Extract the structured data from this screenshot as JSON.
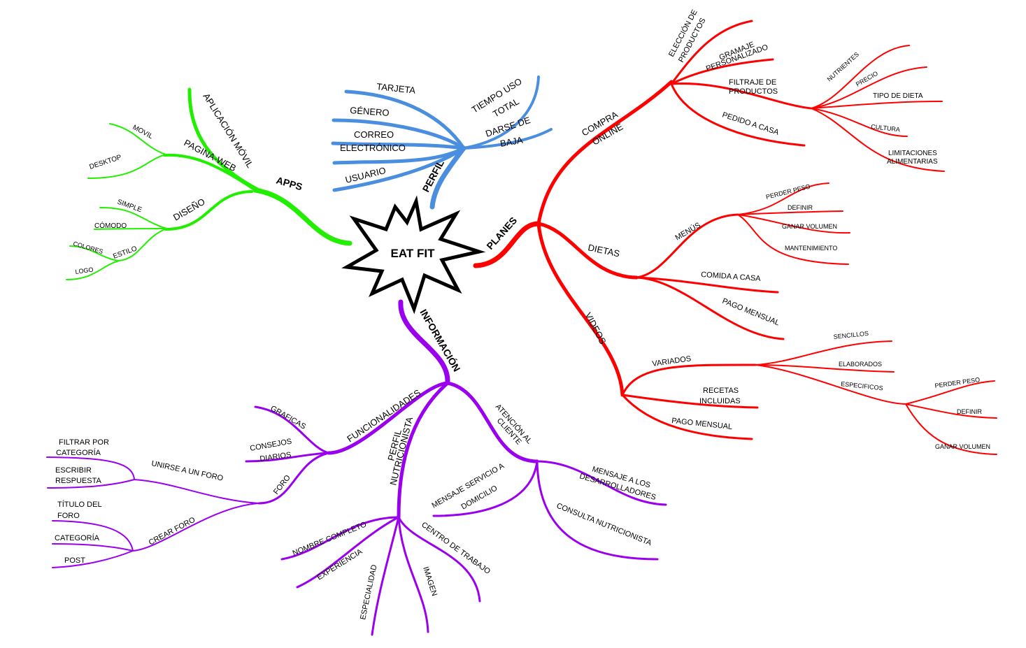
{
  "center": {
    "label": "EAT FIT"
  },
  "colors": {
    "apps": "#22ee00",
    "perfil": "#4a8ee0",
    "planes": "#ff0000",
    "informacion": "#9b00ee",
    "outline": "#000000"
  },
  "apps": {
    "label": "APPS",
    "aplicacion_movil": "APLICACIÓN MÓVIL",
    "pagina_web": "PAGINA-WEB",
    "movil": "MOVIL",
    "desktop": "DESKTOP",
    "diseno": "DISEÑO",
    "simple": "SIMPLE",
    "comodo": "CÓMODO",
    "estilo": "ESTILO",
    "colores": "COLORES",
    "logo": "LOGO"
  },
  "perfil": {
    "label": "PERFIL",
    "tarjeta": "TARJETA",
    "genero": "GÉNERO",
    "correo_1": "CORREO",
    "correo_2": "ELECTRÓNICO",
    "usuario": "USUARIO",
    "tiempo_1": "TIEMPO USO",
    "tiempo_2": "TOTAL",
    "darse_1": "DARSE DE",
    "darse_2": "BAJA"
  },
  "planes": {
    "label": "PLANES",
    "compra_1": "COMPRA",
    "compra_2": "ONLINE",
    "eleccion_1": "ELECCIÓN DE",
    "eleccion_2": "PRODUCTOS",
    "gramaje_1": "GRAMAJE",
    "gramaje_2": "PERSONALIZADO",
    "filtraje_1": "FILTRAJE DE",
    "filtraje_2": "PRODUCTOS",
    "nutrientes": "NUTRIENTES",
    "precio": "PRECIO",
    "tipo_dieta": "TIPO DE DIETA",
    "cultura": "CULTURA",
    "limitaciones_1": "LIMITACIONES",
    "limitaciones_2": "ALIMENTARIAS",
    "pedido": "PEDIDO A CASA",
    "dietas": "DIETAS",
    "menus": "MENÚS",
    "perder_peso": "PERDER PESO",
    "definir": "DEFINIR",
    "ganar_volumen": "GANAR VOLUMEN",
    "mantenimiento": "MANTENIMIENTO",
    "comida_casa": "COMIDA A CASA",
    "pago_mensual": "PAGO MENSUAL",
    "videos": "VIDEOS",
    "variados": "VARIADOS",
    "sencillos": "SENCILLOS",
    "elaborados": "ELABORADOS",
    "especificos": "ESPECIFICOS",
    "perder_peso_2": "PERDER PESO",
    "definir_2": "DEFINIR",
    "ganar_volumen_2": "GANAR VOLUMEN",
    "recetas_1": "RECETAS",
    "recetas_2": "INCLUIDAS",
    "pago_mensual_2": "PAGO MENSUAL"
  },
  "informacion": {
    "label": "INFORMACIÓN",
    "funcionalidades": "FUNCIONALIDADES",
    "graficas": "GRAFICAS",
    "consejos_1": "CONSEJOS",
    "consejos_2": "DIARIOS",
    "foro": "FORO",
    "unirse": "UNIRSE A UN FORO",
    "filtrar_1": "FILTRAR POR",
    "filtrar_2": "CATEGORÍA",
    "escribir_1": "ESCRIBIR",
    "escribir_2": "RESPUESTA",
    "crear": "CREAR FORO",
    "titulo_1": "TÍTULO DEL",
    "titulo_2": "FORO",
    "categoria": "CATEGORÍA",
    "post": "POST",
    "perfil_nut_1": "PERFIL",
    "perfil_nut_2": "NUTRICIONISTA",
    "nombre": "NOMBRE COMPLETO",
    "experiencia": "EXPERIENCIA",
    "especialidad": "ESPECIALIDAD",
    "imagen": "IMAGEN",
    "centro": "CENTRO DE TRABAJO",
    "atencion_1": "ATENCIÓN AL",
    "atencion_2": "CLIENTE",
    "mensaje_serv_1": "MENSAJE SERVICIO A",
    "mensaje_serv_2": "DOMICILIO",
    "mensaje_des_1": "MENSAJE A LOS",
    "mensaje_des_2": "DESARROLLADORES",
    "consulta": "CONSULTA NUTRICIONISTA"
  }
}
